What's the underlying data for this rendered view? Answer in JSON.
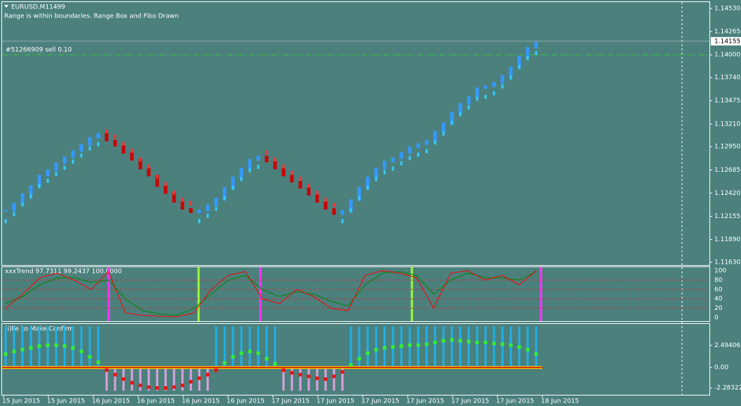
{
  "header": {
    "symbol": "EURUSD,M11499",
    "status": "Range is within boundaries. Range Box and Fibo Drawn"
  },
  "order": {
    "label": "#51266909 sell 0.10",
    "price": 1.14
  },
  "price_panel": {
    "ylim": [
      1.1163,
      1.1453
    ],
    "yticks": [
      {
        "value": 1.1453,
        "label": "1.14530"
      },
      1.14265,
      {
        "value": 1.14,
        "label": "1.14000"
      },
      {
        "value": 1.1374,
        "label": "1.13740"
      },
      1.13475,
      {
        "value": 1.1321,
        "label": "1.13210"
      },
      {
        "value": 1.1295,
        "label": "1.12950"
      },
      1.12685,
      {
        "value": 1.1242,
        "label": "1.12420"
      },
      1.12155,
      {
        "value": 1.1189,
        "label": "1.11890"
      },
      {
        "value": 1.1163,
        "label": "1.11630"
      }
    ],
    "current_price": 1.14155,
    "closes": [
      1.1222,
      1.123,
      1.1241,
      1.125,
      1.1262,
      1.1268,
      1.1276,
      1.1283,
      1.129,
      1.1297,
      1.1305,
      1.131,
      1.1302,
      1.1296,
      1.1288,
      1.128,
      1.127,
      1.1262,
      1.125,
      1.1242,
      1.1232,
      1.1224,
      1.122,
      1.1222,
      1.1228,
      1.1236,
      1.1248,
      1.126,
      1.127,
      1.128,
      1.1284,
      1.1278,
      1.127,
      1.1262,
      1.1255,
      1.1248,
      1.124,
      1.1232,
      1.1224,
      1.1218,
      1.1222,
      1.1234,
      1.1248,
      1.126,
      1.127,
      1.1278,
      1.1282,
      1.1288,
      1.1294,
      1.1298,
      1.1302,
      1.1312,
      1.1322,
      1.1334,
      1.1344,
      1.1352,
      1.1362,
      1.1364,
      1.1368,
      1.1376,
      1.1386,
      1.1398,
      1.1408,
      1.1414
    ]
  },
  "trend_panel": {
    "title": "xxxTrend 97.7311 99.2437 100.0000",
    "ylim": [
      0,
      100
    ],
    "yticks": [
      100,
      80,
      60,
      40,
      20,
      0
    ],
    "fast": [
      20,
      50,
      85,
      95,
      80,
      60,
      98,
      10,
      5,
      3,
      2,
      10,
      60,
      90,
      98,
      40,
      30,
      60,
      45,
      20,
      15,
      90,
      100,
      95,
      85,
      20,
      95,
      100,
      80,
      90,
      70,
      100
    ],
    "slow": [
      30,
      45,
      70,
      85,
      85,
      75,
      80,
      40,
      15,
      8,
      5,
      20,
      50,
      80,
      90,
      60,
      45,
      55,
      50,
      35,
      25,
      70,
      95,
      98,
      90,
      50,
      80,
      95,
      85,
      85,
      80,
      98
    ]
  },
  "confirm_panel": {
    "title": "(i)Fe ko Make Confirm",
    "ylim": [
      -2.9,
      4.8
    ],
    "yticks": [
      2.49406,
      {
        "value": 0,
        "label": "0.00"
      },
      -2.28322
    ],
    "bars": [
      4.6,
      4.6,
      4.6,
      4.6,
      4.6,
      4.6,
      4.6,
      4.6,
      4.6,
      4.6,
      4.6,
      4.6,
      -2.6,
      -2.6,
      -2.6,
      -2.6,
      -2.6,
      -2.6,
      -2.6,
      -2.6,
      -2.6,
      -2.6,
      -2.6,
      -2.6,
      -2.6,
      4.6,
      4.6,
      4.6,
      4.6,
      4.6,
      4.6,
      4.6,
      4.6,
      -2.6,
      -2.6,
      -2.6,
      -2.6,
      -2.6,
      -2.6,
      -2.6,
      -2.6,
      4.6,
      4.6,
      4.6,
      4.6,
      4.6,
      4.6,
      4.6,
      4.6,
      4.6,
      4.6,
      4.6,
      4.6,
      4.6,
      4.6,
      4.6,
      4.6,
      4.6,
      4.6,
      4.6,
      4.6,
      4.6,
      4.6,
      4.6
    ],
    "dots": [
      1.5,
      1.8,
      2.0,
      2.2,
      2.4,
      2.5,
      2.5,
      2.4,
      2.2,
      1.8,
      1.2,
      0.6,
      -0.3,
      -0.8,
      -1.3,
      -1.7,
      -2.0,
      -2.2,
      -2.3,
      -2.3,
      -2.2,
      -2.0,
      -1.6,
      -1.2,
      -0.8,
      -0.3,
      0.5,
      1.2,
      1.6,
      1.8,
      1.6,
      1.0,
      0.4,
      -0.3,
      -0.6,
      -0.8,
      -1.0,
      -1.2,
      -1.3,
      -1.0,
      -0.5,
      0.3,
      1.0,
      1.6,
      2.0,
      2.2,
      2.3,
      2.4,
      2.5,
      2.5,
      2.6,
      2.8,
      3.0,
      3.1,
      3.0,
      2.9,
      2.8,
      2.8,
      2.7,
      2.6,
      2.5,
      2.3,
      2.0,
      1.5
    ]
  },
  "time_axis": {
    "labels": [
      "15 Jun 2015",
      "15 Jun 2015",
      "16 Jun 2015",
      "16 Jun 2015",
      "16 Jun 2015",
      "16 Jun 2015",
      "17 Jun 2015",
      "17 Jun 2015",
      "17 Jun 2015",
      "17 Jun 2015",
      "17 Jun 2015",
      "17 Jun 2015",
      "18 Jun 2015"
    ]
  }
}
